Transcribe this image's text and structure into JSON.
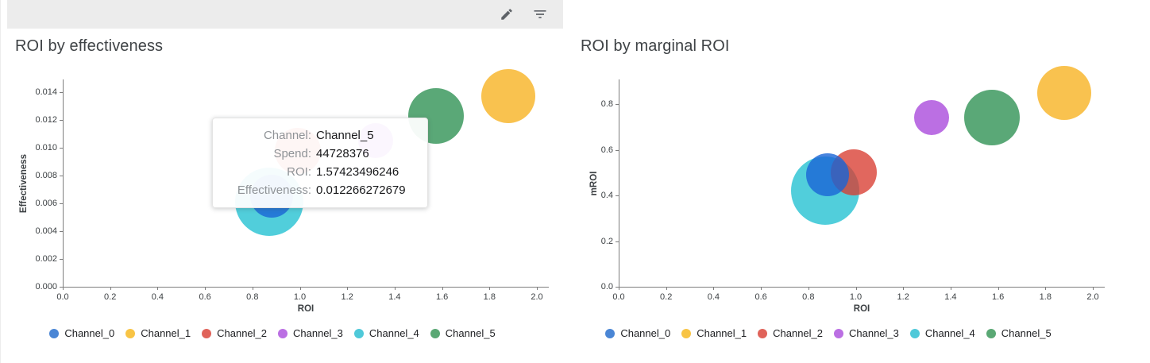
{
  "toolbar": {
    "background": "#ececec",
    "icons": [
      {
        "name": "edit-icon"
      },
      {
        "name": "filter-list-icon"
      }
    ]
  },
  "charts": [
    {
      "title": "ROI by effectiveness",
      "xlabel": "ROI",
      "ylabel": "Effectiveness",
      "x_ticks": [
        "0.0",
        "0.2",
        "0.4",
        "0.6",
        "0.8",
        "1.0",
        "1.2",
        "1.4",
        "1.6",
        "1.8",
        "2.0"
      ],
      "y_ticks": [
        "0.000",
        "0.002",
        "0.004",
        "0.006",
        "0.008",
        "0.010",
        "0.012",
        "0.014"
      ]
    },
    {
      "title": "ROI by marginal ROI",
      "xlabel": "ROI",
      "ylabel": "mROI",
      "x_ticks": [
        "0.0",
        "0.2",
        "0.4",
        "0.6",
        "0.8",
        "1.0",
        "1.2",
        "1.4",
        "1.6",
        "1.8",
        "2.0"
      ],
      "y_ticks": [
        "0.0",
        "0.2",
        "0.4",
        "0.6",
        "0.8"
      ]
    }
  ],
  "tooltip": {
    "rows": [
      {
        "label": "Channel:",
        "value": "Channel_5"
      },
      {
        "label": "Spend:",
        "value": "44728376"
      },
      {
        "label": "ROI:",
        "value": "1.57423496246"
      },
      {
        "label": "Effectiveness:",
        "value": "0.012266272679"
      }
    ]
  },
  "legend": [
    {
      "label": "Channel_0",
      "color": "#4a86d5"
    },
    {
      "label": "Channel_1",
      "color": "#f8c445"
    },
    {
      "label": "Channel_2",
      "color": "#e0635a"
    },
    {
      "label": "Channel_3",
      "color": "#bb6fe3"
    },
    {
      "label": "Channel_4",
      "color": "#4fc9d9"
    },
    {
      "label": "Channel_5",
      "color": "#5aa874"
    }
  ],
  "channels": {
    "Channel_0": {
      "bubble": "rgba(26,101,214,0.80)"
    },
    "Channel_1": {
      "bubble": "rgba(247,179,35,0.80)"
    },
    "Channel_2": {
      "bubble": "rgba(216,60,49,0.78)"
    },
    "Channel_3": {
      "bubble": "rgba(164,63,218,0.75)"
    },
    "Channel_4": {
      "bubble": "rgba(23,190,207,0.75)"
    },
    "Channel_5": {
      "bubble": "rgba(43,143,81,0.78)"
    }
  },
  "draw_order": [
    "Channel_4",
    "Channel_2",
    "Channel_3",
    "Channel_5",
    "Channel_1",
    "Channel_0"
  ],
  "chart_data": [
    {
      "type": "scatter",
      "title": "ROI by effectiveness",
      "xlabel": "ROI",
      "ylabel": "Effectiveness",
      "xlim": [
        0,
        2.0
      ],
      "ylim": [
        0,
        0.014
      ],
      "grid": false,
      "legend_position": "bottom",
      "series": [
        {
          "name": "Channel_0",
          "x": 0.88,
          "y": 0.0065,
          "r": 27
        },
        {
          "name": "Channel_1",
          "x": 1.88,
          "y": 0.0137,
          "r": 34
        },
        {
          "name": "Channel_2",
          "x": 0.99,
          "y": 0.0098,
          "r": 29
        },
        {
          "name": "Channel_3",
          "x": 1.32,
          "y": 0.0105,
          "r": 22
        },
        {
          "name": "Channel_4",
          "x": 0.87,
          "y": 0.0061,
          "r": 43
        },
        {
          "name": "Channel_5",
          "x": 1.57423496246,
          "y": 0.012266272679,
          "r": 35
        }
      ]
    },
    {
      "type": "scatter",
      "title": "ROI by marginal ROI",
      "xlabel": "ROI",
      "ylabel": "mROI",
      "xlim": [
        0,
        2.0
      ],
      "ylim": [
        0,
        0.8
      ],
      "grid": false,
      "legend_position": "bottom",
      "series": [
        {
          "name": "Channel_0",
          "x": 0.88,
          "y": 0.49,
          "r": 27
        },
        {
          "name": "Channel_1",
          "x": 1.88,
          "y": 0.85,
          "r": 34
        },
        {
          "name": "Channel_2",
          "x": 0.99,
          "y": 0.5,
          "r": 29
        },
        {
          "name": "Channel_3",
          "x": 1.32,
          "y": 0.74,
          "r": 22
        },
        {
          "name": "Channel_4",
          "x": 0.87,
          "y": 0.42,
          "r": 43
        },
        {
          "name": "Channel_5",
          "x": 1.57423496246,
          "y": 0.74,
          "r": 35
        }
      ]
    }
  ]
}
